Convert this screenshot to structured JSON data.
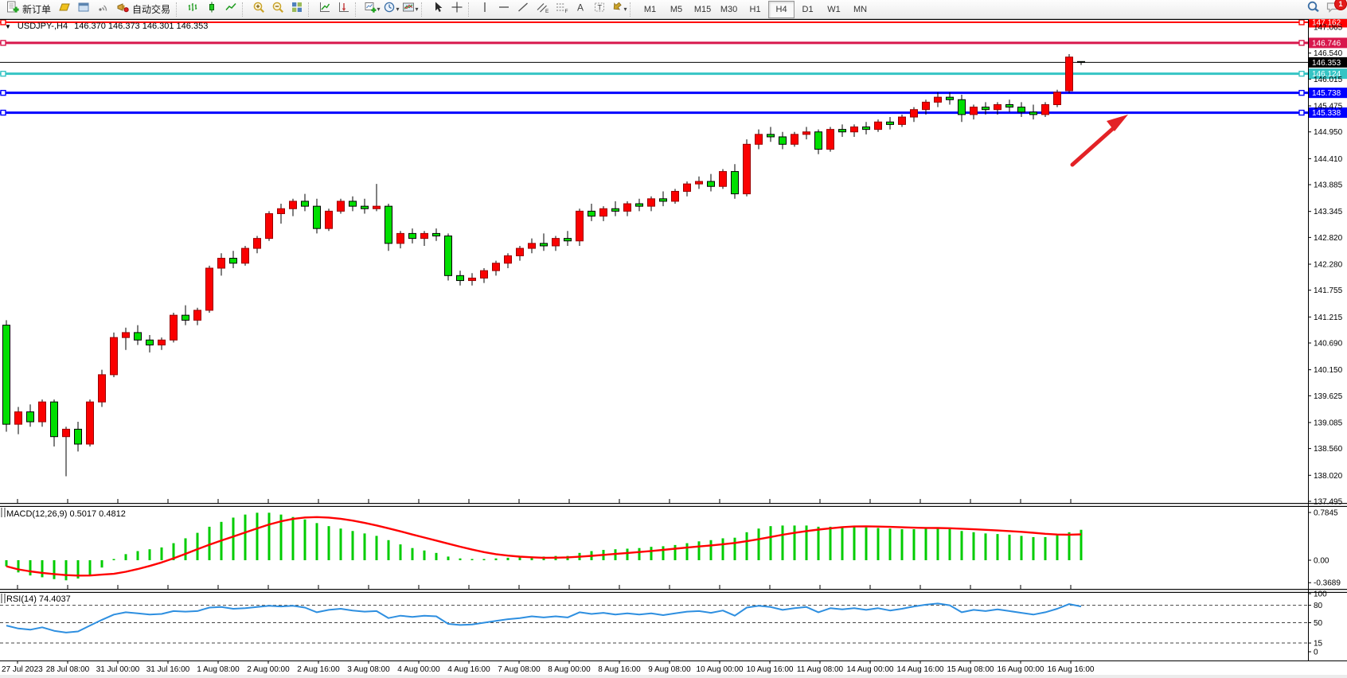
{
  "window": {
    "notification_count": "1"
  },
  "toolbar": {
    "new_order_label": "新订单",
    "auto_trading_label": "自动交易",
    "timeframes": [
      "M1",
      "M5",
      "M15",
      "M30",
      "H1",
      "H4",
      "D1",
      "W1",
      "MN"
    ],
    "active_timeframe": "H4"
  },
  "chart": {
    "symbol_title": "USDJPY-,H4",
    "ohlc_text": "146.370 146.373 146.301 146.353",
    "macd_label": "MACD(12,26,9) 0.5017 0.4812",
    "rsi_label": "RSI(14) 74.4037",
    "current_price": {
      "value": 146.353,
      "label": "146.353",
      "color": "#000000"
    },
    "levels": [
      {
        "value": 147.162,
        "label": "147.162",
        "color": "#FF0000",
        "width": 2
      },
      {
        "value": 146.746,
        "label": "146.746",
        "color": "#D8174C",
        "width": 3
      },
      {
        "value": 146.124,
        "label": "146.124",
        "color": "#35C4C4",
        "width": 3
      },
      {
        "value": 145.738,
        "label": "145.738",
        "color": "#0000FF",
        "width": 3
      },
      {
        "value": 145.338,
        "label": "145.338",
        "color": "#0000FF",
        "width": 3
      }
    ],
    "price_ticks": [
      "147.065",
      "146.540",
      "146.015",
      "145.475",
      "144.950",
      "144.410",
      "143.885",
      "143.345",
      "142.820",
      "142.280",
      "141.755",
      "141.215",
      "140.690",
      "140.150",
      "139.625",
      "139.085",
      "138.560",
      "138.020",
      "137.495"
    ],
    "date_labels": [
      "27 Jul 2023",
      "28 Jul 08:00",
      "31 Jul 00:00",
      "31 Jul 16:00",
      "1 Aug 08:00",
      "2 Aug 00:00",
      "2 Aug 16:00",
      "3 Aug 08:00",
      "4 Aug 00:00",
      "4 Aug 16:00",
      "7 Aug 08:00",
      "8 Aug 00:00",
      "8 Aug 16:00",
      "9 Aug 08:00",
      "10 Aug 00:00",
      "10 Aug 16:00",
      "11 Aug 08:00",
      "14 Aug 00:00",
      "14 Aug 16:00",
      "15 Aug 08:00",
      "16 Aug 00:00",
      "16 Aug 16:00"
    ],
    "colors": {
      "up_candle": "#FA0000",
      "down_candle": "#00DF00",
      "wick": "#000000",
      "macd_hist": "#00CC00",
      "macd_signal": "#FF0000",
      "rsi_line": "#2E8FE0",
      "arrow": "#E32226"
    }
  },
  "chart_data": [
    {
      "type": "candlestick",
      "symbol": "USDJPY",
      "timeframe": "H4",
      "ylim": [
        137.3,
        147.3
      ],
      "up_color_meaning": "bullish (red)",
      "down_color_meaning": "bearish (green)",
      "candles": [
        [
          141.05,
          141.15,
          138.9,
          139.05
        ],
        [
          139.05,
          139.4,
          138.85,
          139.3
        ],
        [
          139.3,
          139.45,
          139.0,
          139.1
        ],
        [
          139.1,
          139.55,
          139.0,
          139.5
        ],
        [
          139.5,
          139.55,
          138.6,
          138.8
        ],
        [
          138.8,
          139.0,
          138.0,
          138.95
        ],
        [
          138.95,
          139.1,
          138.5,
          138.65
        ],
        [
          138.65,
          139.55,
          138.6,
          139.5
        ],
        [
          139.5,
          140.15,
          139.4,
          140.05
        ],
        [
          140.05,
          140.9,
          140.0,
          140.8
        ],
        [
          140.8,
          141.0,
          140.55,
          140.9
        ],
        [
          140.9,
          141.05,
          140.65,
          140.75
        ],
        [
          140.75,
          140.85,
          140.5,
          140.65
        ],
        [
          140.65,
          140.8,
          140.55,
          140.75
        ],
        [
          140.75,
          141.3,
          140.7,
          141.25
        ],
        [
          141.25,
          141.45,
          141.05,
          141.15
        ],
        [
          141.15,
          141.4,
          141.05,
          141.35
        ],
        [
          141.35,
          142.25,
          141.3,
          142.2
        ],
        [
          142.2,
          142.5,
          142.05,
          142.4
        ],
        [
          142.4,
          142.55,
          142.2,
          142.3
        ],
        [
          142.3,
          142.65,
          142.25,
          142.6
        ],
        [
          142.6,
          142.85,
          142.5,
          142.8
        ],
        [
          142.8,
          143.35,
          142.75,
          143.3
        ],
        [
          143.3,
          143.5,
          143.1,
          143.4
        ],
        [
          143.4,
          143.6,
          143.25,
          143.55
        ],
        [
          143.55,
          143.7,
          143.35,
          143.45
        ],
        [
          143.45,
          143.6,
          142.9,
          143.0
        ],
        [
          143.0,
          143.4,
          142.95,
          143.35
        ],
        [
          143.35,
          143.6,
          143.3,
          143.55
        ],
        [
          143.55,
          143.65,
          143.35,
          143.45
        ],
        [
          143.45,
          143.6,
          143.3,
          143.4
        ],
        [
          143.4,
          143.9,
          143.35,
          143.45
        ],
        [
          143.45,
          143.5,
          142.55,
          142.7
        ],
        [
          142.7,
          142.95,
          142.6,
          142.9
        ],
        [
          142.9,
          143.0,
          142.7,
          142.8
        ],
        [
          142.8,
          142.95,
          142.65,
          142.9
        ],
        [
          142.9,
          143.0,
          142.75,
          142.85
        ],
        [
          142.85,
          142.9,
          141.95,
          142.05
        ],
        [
          142.05,
          142.15,
          141.85,
          141.95
        ],
        [
          141.95,
          142.1,
          141.85,
          142.0
        ],
        [
          142.0,
          142.2,
          141.9,
          142.15
        ],
        [
          142.15,
          142.35,
          142.05,
          142.3
        ],
        [
          142.3,
          142.5,
          142.2,
          142.45
        ],
        [
          142.45,
          142.65,
          142.35,
          142.6
        ],
        [
          142.6,
          142.8,
          142.5,
          142.7
        ],
        [
          142.7,
          142.9,
          142.55,
          142.65
        ],
        [
          142.65,
          142.85,
          142.55,
          142.8
        ],
        [
          142.8,
          142.95,
          142.65,
          142.75
        ],
        [
          142.75,
          143.4,
          142.65,
          143.35
        ],
        [
          143.35,
          143.5,
          143.15,
          143.25
        ],
        [
          143.25,
          143.45,
          143.15,
          143.4
        ],
        [
          143.4,
          143.55,
          143.25,
          143.35
        ],
        [
          143.35,
          143.55,
          143.25,
          143.5
        ],
        [
          143.5,
          143.6,
          143.35,
          143.45
        ],
        [
          143.45,
          143.65,
          143.35,
          143.6
        ],
        [
          143.6,
          143.75,
          143.45,
          143.55
        ],
        [
          143.55,
          143.8,
          143.5,
          143.75
        ],
        [
          143.75,
          143.95,
          143.65,
          143.9
        ],
        [
          143.9,
          144.05,
          143.8,
          143.95
        ],
        [
          143.95,
          144.1,
          143.75,
          143.85
        ],
        [
          143.85,
          144.2,
          143.8,
          144.15
        ],
        [
          144.15,
          144.3,
          143.6,
          143.7
        ],
        [
          143.7,
          144.8,
          143.65,
          144.7
        ],
        [
          144.7,
          145.0,
          144.6,
          144.9
        ],
        [
          144.9,
          145.05,
          144.75,
          144.85
        ],
        [
          144.85,
          144.95,
          144.6,
          144.7
        ],
        [
          144.7,
          144.95,
          144.65,
          144.9
        ],
        [
          144.9,
          145.05,
          144.8,
          144.95
        ],
        [
          144.95,
          145.0,
          144.5,
          144.6
        ],
        [
          144.6,
          145.05,
          144.55,
          145.0
        ],
        [
          145.0,
          145.1,
          144.85,
          144.95
        ],
        [
          144.95,
          145.1,
          144.85,
          145.05
        ],
        [
          145.05,
          145.15,
          144.9,
          145.0
        ],
        [
          145.0,
          145.2,
          144.95,
          145.15
        ],
        [
          145.15,
          145.25,
          145.0,
          145.1
        ],
        [
          145.1,
          145.3,
          145.05,
          145.25
        ],
        [
          145.25,
          145.45,
          145.15,
          145.4
        ],
        [
          145.4,
          145.6,
          145.3,
          145.55
        ],
        [
          145.55,
          145.75,
          145.45,
          145.65
        ],
        [
          145.65,
          145.75,
          145.5,
          145.6
        ],
        [
          145.6,
          145.7,
          145.15,
          145.3
        ],
        [
          145.3,
          145.5,
          145.2,
          145.45
        ],
        [
          145.45,
          145.55,
          145.3,
          145.4
        ],
        [
          145.4,
          145.55,
          145.3,
          145.5
        ],
        [
          145.5,
          145.6,
          145.35,
          145.45
        ],
        [
          145.45,
          145.55,
          145.25,
          145.35
        ],
        [
          145.35,
          145.5,
          145.2,
          145.3
        ],
        [
          145.3,
          145.55,
          145.25,
          145.5
        ],
        [
          145.5,
          145.8,
          145.45,
          145.75
        ],
        [
          145.78,
          146.52,
          145.73,
          146.46
        ],
        [
          146.37,
          146.373,
          146.301,
          146.353
        ]
      ]
    },
    {
      "type": "bar",
      "name": "MACD",
      "params": "12,26,9",
      "main_value": "0.5017",
      "signal_value": "0.4812",
      "axis_ticks": [
        "0.7845",
        "0.00",
        "-0.3689"
      ],
      "axis_tick_values": [
        0.7845,
        0,
        -0.3689
      ],
      "values": [
        -0.1,
        -0.2,
        -0.25,
        -0.28,
        -0.31,
        -0.33,
        -0.3,
        -0.24,
        -0.12,
        0.02,
        0.1,
        0.15,
        0.18,
        0.21,
        0.28,
        0.36,
        0.45,
        0.55,
        0.63,
        0.7,
        0.75,
        0.78,
        0.78,
        0.75,
        0.71,
        0.67,
        0.61,
        0.56,
        0.52,
        0.48,
        0.44,
        0.4,
        0.33,
        0.26,
        0.2,
        0.16,
        0.12,
        0.06,
        0.03,
        0.02,
        0.02,
        0.03,
        0.04,
        0.05,
        0.06,
        0.06,
        0.07,
        0.07,
        0.12,
        0.15,
        0.17,
        0.18,
        0.19,
        0.2,
        0.22,
        0.23,
        0.25,
        0.28,
        0.31,
        0.33,
        0.36,
        0.37,
        0.46,
        0.52,
        0.56,
        0.57,
        0.57,
        0.57,
        0.55,
        0.55,
        0.55,
        0.55,
        0.54,
        0.53,
        0.52,
        0.51,
        0.51,
        0.52,
        0.53,
        0.52,
        0.48,
        0.46,
        0.44,
        0.43,
        0.42,
        0.4,
        0.38,
        0.38,
        0.41,
        0.46,
        0.5
      ],
      "signal": "SMA(9) of values"
    },
    {
      "type": "line",
      "name": "RSI",
      "params": "14",
      "value": "74.4037",
      "axis_ticks": [
        "100",
        "80",
        "50",
        "15",
        "0"
      ],
      "axis_tick_values": [
        100,
        80,
        50,
        15,
        0
      ],
      "dashed_levels": [
        80,
        50,
        15
      ],
      "values": [
        45,
        40,
        38,
        42,
        36,
        33,
        35,
        45,
        55,
        64,
        68,
        66,
        64,
        65,
        70,
        69,
        70,
        76,
        77,
        74,
        75,
        77,
        79,
        78,
        79,
        76,
        68,
        72,
        74,
        71,
        69,
        70,
        58,
        62,
        60,
        62,
        61,
        48,
        46,
        47,
        50,
        53,
        56,
        58,
        61,
        59,
        61,
        59,
        68,
        65,
        67,
        64,
        66,
        64,
        66,
        63,
        66,
        69,
        70,
        67,
        71,
        62,
        76,
        79,
        77,
        72,
        75,
        77,
        68,
        75,
        73,
        75,
        72,
        75,
        71,
        74,
        78,
        81,
        83,
        80,
        68,
        72,
        70,
        73,
        70,
        67,
        64,
        68,
        74,
        82,
        78
      ]
    }
  ]
}
